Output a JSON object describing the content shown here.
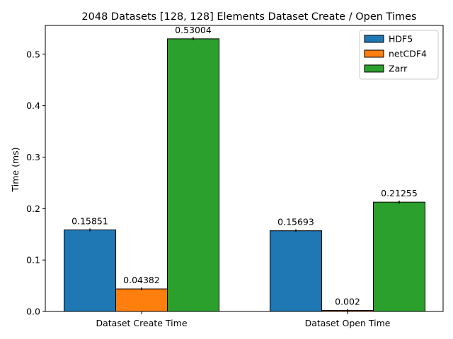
{
  "chart_data": {
    "type": "bar",
    "title": "2048 Datasets [128, 128] Elements Dataset Create / Open Times",
    "xlabel": "",
    "ylabel": "Time (ms)",
    "categories": [
      "Dataset Create Time",
      "Dataset Open Time"
    ],
    "series": [
      {
        "name": "HDF5",
        "color": "#1f77b4",
        "values": [
          0.15851,
          0.15693
        ],
        "labels": [
          "0.15851",
          "0.15693"
        ]
      },
      {
        "name": "netCDF4",
        "color": "#ff7f0e",
        "values": [
          0.04382,
          0.002
        ],
        "labels": [
          "0.04382",
          "0.002"
        ]
      },
      {
        "name": "Zarr",
        "color": "#2ca02c",
        "values": [
          0.53004,
          0.21255
        ],
        "labels": [
          "0.53004",
          "0.21255"
        ]
      }
    ],
    "ylim": [
      0,
      0.556
    ],
    "yticks": [
      0.0,
      0.1,
      0.2,
      0.3,
      0.4,
      0.5
    ],
    "ytick_labels": [
      "0.0",
      "0.1",
      "0.2",
      "0.3",
      "0.4",
      "0.5"
    ],
    "grid": false,
    "legend": "top-right",
    "error_bars": true
  }
}
